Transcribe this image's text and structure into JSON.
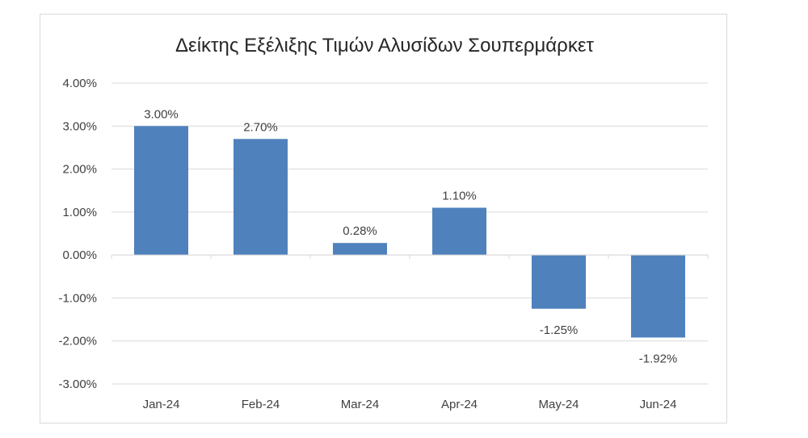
{
  "chart_data": {
    "type": "bar",
    "title": "Δείκτης Εξέλιξης Τιμών Αλυσίδων Σουπερμάρκετ",
    "xlabel": "",
    "ylabel": "",
    "categories": [
      "Jan-24",
      "Feb-24",
      "Mar-24",
      "Apr-24",
      "May-24",
      "Jun-24"
    ],
    "values": [
      3.0,
      2.7,
      0.28,
      1.1,
      -1.25,
      -1.92
    ],
    "data_labels": [
      "3.00%",
      "2.70%",
      "0.28%",
      "1.10%",
      "-1.25%",
      "-1.92%"
    ],
    "ylim": [
      -3,
      4
    ],
    "y_ticks": [
      4,
      3,
      2,
      1,
      0,
      -1,
      -2,
      -3
    ],
    "y_tick_labels": [
      "4.00%",
      "3.00%",
      "2.00%",
      "1.00%",
      "0.00%",
      "-1.00%",
      "-2.00%",
      "-3.00%"
    ],
    "grid": true,
    "legend": "none",
    "bar_color": "#4f81bd"
  }
}
